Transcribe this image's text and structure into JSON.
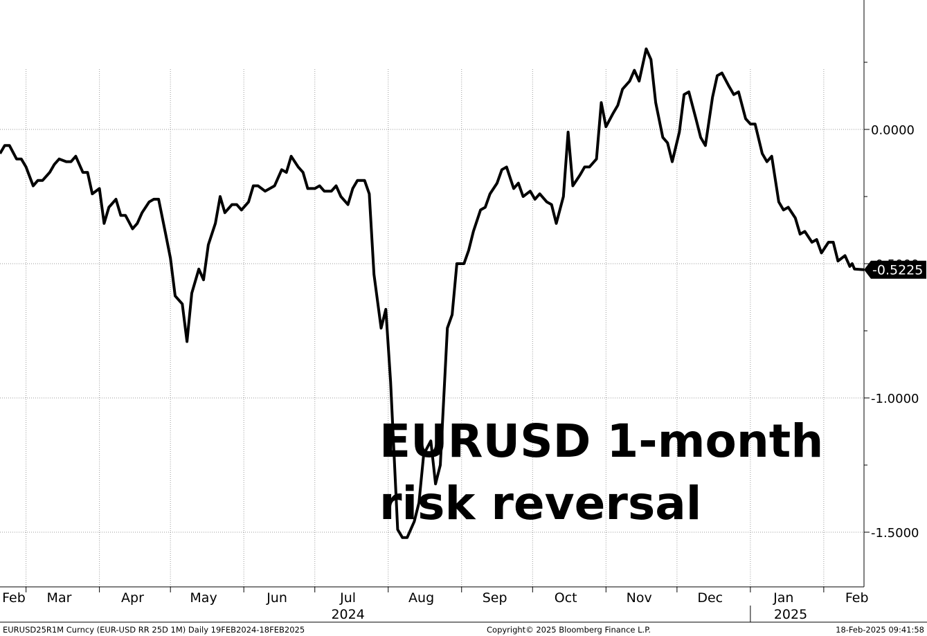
{
  "chart_data": {
    "type": "line",
    "title_lines": [
      "EURUSD 1-month",
      "risk reversal"
    ],
    "y_axis": {
      "ylim": [
        -1.72,
        0.47
      ],
      "ticks": [
        0,
        -0.5,
        -1.0,
        -1.5
      ],
      "tick_labels": [
        "0.0000",
        "-0.5000",
        "-1.0000",
        "-1.5000"
      ],
      "position": "right"
    },
    "x_axis": {
      "range": [
        "2024-02-19",
        "2025-02-18"
      ],
      "month_ticks": [
        {
          "date": "2024-02-29",
          "label": "Feb"
        },
        {
          "date": "2024-03-15",
          "label": "Mar"
        },
        {
          "date": "2024-04-15",
          "label": "Apr"
        },
        {
          "date": "2024-05-15",
          "label": "May"
        },
        {
          "date": "2024-06-15",
          "label": "Jun"
        },
        {
          "date": "2024-07-15",
          "label": "Jul"
        },
        {
          "date": "2024-08-15",
          "label": "Aug"
        },
        {
          "date": "2024-09-15",
          "label": "Sep"
        },
        {
          "date": "2024-10-15",
          "label": "Oct"
        },
        {
          "date": "2024-11-15",
          "label": "Nov"
        },
        {
          "date": "2024-12-15",
          "label": "Dec"
        },
        {
          "date": "2025-01-15",
          "label": "Jan"
        },
        {
          "date": "2025-02-15",
          "label": "Feb"
        }
      ],
      "year_labels": [
        {
          "date": "2024-07-15",
          "label": "2024"
        },
        {
          "date": "2025-01-18",
          "label": "2025"
        }
      ]
    },
    "grid": true,
    "last_value_label": "-0.5225",
    "series": [
      {
        "values": [
          [
            "2024-02-19",
            -0.09
          ],
          [
            "2024-02-21",
            -0.06
          ],
          [
            "2024-02-23",
            -0.06
          ],
          [
            "2024-02-26",
            -0.11
          ],
          [
            "2024-02-28",
            -0.11
          ],
          [
            "2024-03-01",
            -0.14
          ],
          [
            "2024-03-04",
            -0.21
          ],
          [
            "2024-03-06",
            -0.19
          ],
          [
            "2024-03-08",
            -0.19
          ],
          [
            "2024-03-11",
            -0.16
          ],
          [
            "2024-03-13",
            -0.13
          ],
          [
            "2024-03-15",
            -0.11
          ],
          [
            "2024-03-18",
            -0.12
          ],
          [
            "2024-03-20",
            -0.12
          ],
          [
            "2024-03-22",
            -0.1
          ],
          [
            "2024-03-25",
            -0.16
          ],
          [
            "2024-03-27",
            -0.16
          ],
          [
            "2024-03-29",
            -0.24
          ],
          [
            "2024-04-01",
            -0.22
          ],
          [
            "2024-04-03",
            -0.35
          ],
          [
            "2024-04-05",
            -0.29
          ],
          [
            "2024-04-08",
            -0.26
          ],
          [
            "2024-04-10",
            -0.32
          ],
          [
            "2024-04-12",
            -0.32
          ],
          [
            "2024-04-15",
            -0.37
          ],
          [
            "2024-04-17",
            -0.35
          ],
          [
            "2024-04-19",
            -0.31
          ],
          [
            "2024-04-22",
            -0.27
          ],
          [
            "2024-04-24",
            -0.26
          ],
          [
            "2024-04-26",
            -0.26
          ],
          [
            "2024-04-29",
            -0.39
          ],
          [
            "2024-05-01",
            -0.48
          ],
          [
            "2024-05-03",
            -0.62
          ],
          [
            "2024-05-06",
            -0.65
          ],
          [
            "2024-05-08",
            -0.79
          ],
          [
            "2024-05-10",
            -0.61
          ],
          [
            "2024-05-13",
            -0.52
          ],
          [
            "2024-05-15",
            -0.56
          ],
          [
            "2024-05-17",
            -0.43
          ],
          [
            "2024-05-20",
            -0.35
          ],
          [
            "2024-05-22",
            -0.25
          ],
          [
            "2024-05-24",
            -0.31
          ],
          [
            "2024-05-27",
            -0.28
          ],
          [
            "2024-05-29",
            -0.28
          ],
          [
            "2024-05-31",
            -0.3
          ],
          [
            "2024-06-03",
            -0.27
          ],
          [
            "2024-06-05",
            -0.21
          ],
          [
            "2024-06-07",
            -0.21
          ],
          [
            "2024-06-10",
            -0.23
          ],
          [
            "2024-06-12",
            -0.22
          ],
          [
            "2024-06-14",
            -0.21
          ],
          [
            "2024-06-17",
            -0.15
          ],
          [
            "2024-06-19",
            -0.16
          ],
          [
            "2024-06-21",
            -0.1
          ],
          [
            "2024-06-24",
            -0.14
          ],
          [
            "2024-06-26",
            -0.16
          ],
          [
            "2024-06-28",
            -0.22
          ],
          [
            "2024-07-01",
            -0.22
          ],
          [
            "2024-07-03",
            -0.21
          ],
          [
            "2024-07-05",
            -0.23
          ],
          [
            "2024-07-08",
            -0.23
          ],
          [
            "2024-07-10",
            -0.21
          ],
          [
            "2024-07-12",
            -0.25
          ],
          [
            "2024-07-15",
            -0.28
          ],
          [
            "2024-07-17",
            -0.22
          ],
          [
            "2024-07-19",
            -0.19
          ],
          [
            "2024-07-22",
            -0.19
          ],
          [
            "2024-07-24",
            -0.24
          ],
          [
            "2024-07-26",
            -0.54
          ],
          [
            "2024-07-29",
            -0.74
          ],
          [
            "2024-07-31",
            -0.67
          ],
          [
            "2024-08-02",
            -0.94
          ],
          [
            "2024-08-05",
            -1.49
          ],
          [
            "2024-08-07",
            -1.52
          ],
          [
            "2024-08-09",
            -1.52
          ],
          [
            "2024-08-12",
            -1.46
          ],
          [
            "2024-08-14",
            -1.39
          ],
          [
            "2024-08-16",
            -1.21
          ],
          [
            "2024-08-19",
            -1.16
          ],
          [
            "2024-08-21",
            -1.32
          ],
          [
            "2024-08-23",
            -1.25
          ],
          [
            "2024-08-26",
            -0.74
          ],
          [
            "2024-08-28",
            -0.69
          ],
          [
            "2024-08-30",
            -0.5
          ],
          [
            "2024-09-02",
            -0.5
          ],
          [
            "2024-09-04",
            -0.45
          ],
          [
            "2024-09-06",
            -0.38
          ],
          [
            "2024-09-09",
            -0.3
          ],
          [
            "2024-09-11",
            -0.29
          ],
          [
            "2024-09-13",
            -0.24
          ],
          [
            "2024-09-16",
            -0.2
          ],
          [
            "2024-09-18",
            -0.15
          ],
          [
            "2024-09-20",
            -0.14
          ],
          [
            "2024-09-23",
            -0.22
          ],
          [
            "2024-09-25",
            -0.2
          ],
          [
            "2024-09-27",
            -0.25
          ],
          [
            "2024-09-30",
            -0.23
          ],
          [
            "2024-10-02",
            -0.26
          ],
          [
            "2024-10-04",
            -0.24
          ],
          [
            "2024-10-07",
            -0.27
          ],
          [
            "2024-10-09",
            -0.28
          ],
          [
            "2024-10-11",
            -0.35
          ],
          [
            "2024-10-14",
            -0.25
          ],
          [
            "2024-10-16",
            -0.01
          ],
          [
            "2024-10-18",
            -0.21
          ],
          [
            "2024-10-21",
            -0.17
          ],
          [
            "2024-10-23",
            -0.14
          ],
          [
            "2024-10-25",
            -0.14
          ],
          [
            "2024-10-28",
            -0.11
          ],
          [
            "2024-10-30",
            0.1
          ],
          [
            "2024-11-01",
            0.01
          ],
          [
            "2024-11-04",
            0.06
          ],
          [
            "2024-11-06",
            0.09
          ],
          [
            "2024-11-08",
            0.15
          ],
          [
            "2024-11-11",
            0.18
          ],
          [
            "2024-11-13",
            0.22
          ],
          [
            "2024-11-15",
            0.18
          ],
          [
            "2024-11-18",
            0.3
          ],
          [
            "2024-11-20",
            0.26
          ],
          [
            "2024-11-22",
            0.1
          ],
          [
            "2024-11-25",
            -0.03
          ],
          [
            "2024-11-27",
            -0.05
          ],
          [
            "2024-11-29",
            -0.12
          ],
          [
            "2024-12-02",
            -0.01
          ],
          [
            "2024-12-04",
            0.13
          ],
          [
            "2024-12-06",
            0.14
          ],
          [
            "2024-12-09",
            0.04
          ],
          [
            "2024-12-11",
            -0.03
          ],
          [
            "2024-12-13",
            -0.06
          ],
          [
            "2024-12-16",
            0.12
          ],
          [
            "2024-12-18",
            0.2
          ],
          [
            "2024-12-20",
            0.21
          ],
          [
            "2024-12-23",
            0.16
          ],
          [
            "2024-12-25",
            0.13
          ],
          [
            "2024-12-27",
            0.14
          ],
          [
            "2024-12-30",
            0.04
          ],
          [
            "2025-01-01",
            0.02
          ],
          [
            "2025-01-03",
            0.02
          ],
          [
            "2025-01-06",
            -0.09
          ],
          [
            "2025-01-08",
            -0.12
          ],
          [
            "2025-01-10",
            -0.1
          ],
          [
            "2025-01-13",
            -0.27
          ],
          [
            "2025-01-15",
            -0.3
          ],
          [
            "2025-01-17",
            -0.29
          ],
          [
            "2025-01-20",
            -0.33
          ],
          [
            "2025-01-22",
            -0.39
          ],
          [
            "2025-01-24",
            -0.38
          ],
          [
            "2025-01-27",
            -0.42
          ],
          [
            "2025-01-29",
            -0.41
          ],
          [
            "2025-01-31",
            -0.46
          ],
          [
            "2025-02-03",
            -0.42
          ],
          [
            "2025-02-05",
            -0.42
          ],
          [
            "2025-02-07",
            -0.49
          ],
          [
            "2025-02-10",
            -0.47
          ],
          [
            "2025-02-12",
            -0.51
          ],
          [
            "2025-02-13",
            -0.5
          ],
          [
            "2025-02-14",
            -0.52
          ],
          [
            "2025-02-18",
            -0.5225
          ]
        ]
      }
    ]
  },
  "footer": {
    "left": "EURUSD25R1M Curncy (EUR-USD RR 25D 1M)  Daily 19FEB2024-18FEB2025",
    "center": "Copyright© 2025 Bloomberg Finance L.P.",
    "right": "18-Feb-2025 09:41:58"
  }
}
